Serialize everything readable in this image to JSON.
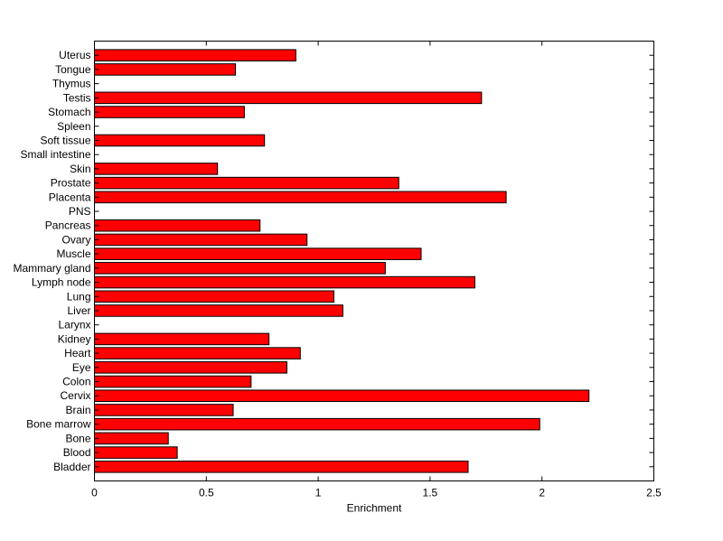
{
  "chart_data": {
    "type": "bar",
    "orientation": "horizontal",
    "categories": [
      "Uterus",
      "Tongue",
      "Thymus",
      "Testis",
      "Stomach",
      "Spleen",
      "Soft tissue",
      "Small intestine",
      "Skin",
      "Prostate",
      "Placenta",
      "PNS",
      "Pancreas",
      "Ovary",
      "Muscle",
      "Mammary gland",
      "Lymph node",
      "Lung",
      "Liver",
      "Larynx",
      "Kidney",
      "Heart",
      "Eye",
      "Colon",
      "Cervix",
      "Brain",
      "Bone marrow",
      "Bone",
      "Blood",
      "Bladder"
    ],
    "values": [
      0.9,
      0.63,
      0,
      1.73,
      0.67,
      0,
      0.76,
      0,
      0.55,
      1.36,
      1.84,
      0,
      0.74,
      0.95,
      1.46,
      1.3,
      1.7,
      1.07,
      1.11,
      0,
      0.78,
      0.92,
      0.86,
      0.7,
      2.21,
      0.62,
      1.99,
      0.33,
      0.37,
      1.67
    ],
    "xlabel": "Enrichment",
    "ylabel": "",
    "title": "",
    "xlim": [
      0,
      2.5
    ],
    "xticks": [
      "0",
      "0.5",
      "1",
      "1.5",
      "2",
      "2.5"
    ],
    "bar_color": "#ff0000",
    "edge_color": "#000000",
    "grid": false,
    "legend": "none"
  }
}
